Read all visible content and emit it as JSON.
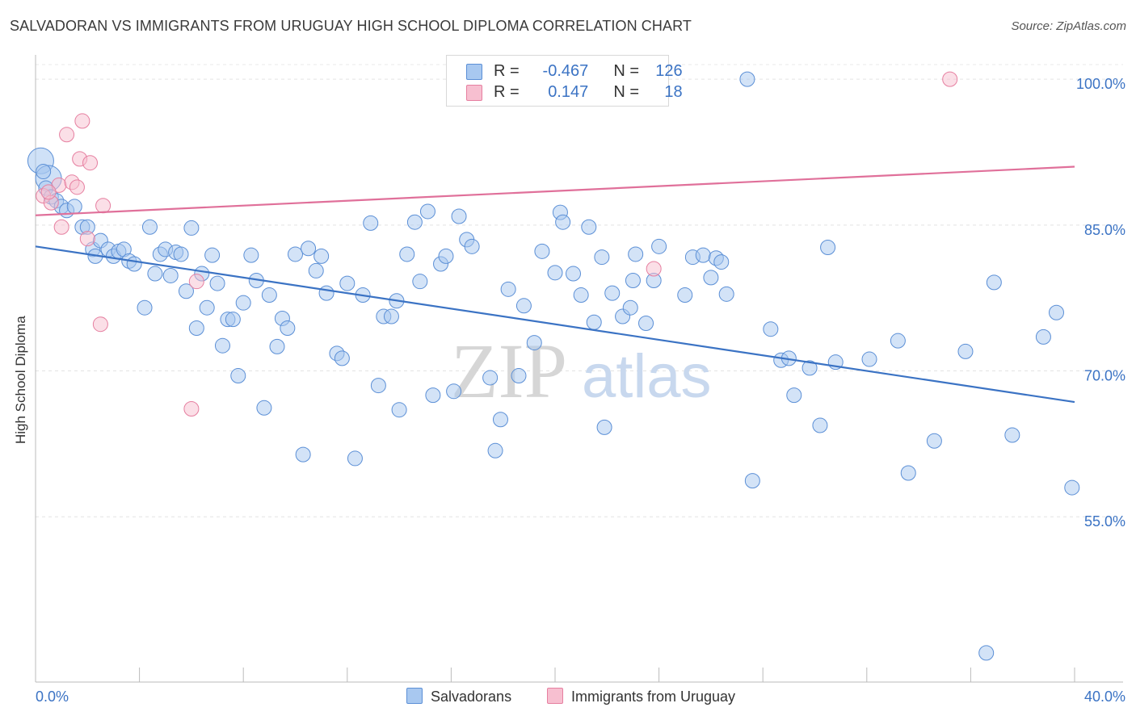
{
  "title": "SALVADORAN VS IMMIGRANTS FROM URUGUAY HIGH SCHOOL DIPLOMA CORRELATION CHART",
  "source": "Source: ZipAtlas.com",
  "watermark": {
    "zip": "ZIP",
    "atlas": "atlas"
  },
  "legend": {
    "rows": [
      {
        "r_label": "R =",
        "r_value": "-0.467",
        "n_label": "N =",
        "n_value": "126",
        "color": "#a8c8f0",
        "stroke": "#5b8fd6"
      },
      {
        "r_label": "R =",
        "r_value": "0.147",
        "n_label": "N =",
        "n_value": "18",
        "color": "#f7bfd0",
        "stroke": "#e67fa0"
      }
    ]
  },
  "bottom_legend": [
    {
      "label": "Salvadorans",
      "color": "#a8c8f0",
      "stroke": "#5b8fd6"
    },
    {
      "label": "Immigrants from Uruguay",
      "color": "#f7bfd0",
      "stroke": "#e67fa0"
    }
  ],
  "chart_data": {
    "type": "scatter",
    "title": "SALVADORAN VS IMMIGRANTS FROM URUGUAY HIGH SCHOOL DIPLOMA CORRELATION CHART",
    "xlabel": "",
    "ylabel": "High School Diploma",
    "xlim": [
      0,
      40
    ],
    "ylim": [
      38,
      102.5
    ],
    "x_tick_labels": [
      "0.0%",
      "40.0%"
    ],
    "y_ticks": [
      55,
      70,
      85,
      100
    ],
    "y_tick_labels": [
      "55.0%",
      "70.0%",
      "85.0%",
      "100.0%"
    ],
    "colors": {
      "blue": "#3b73c4",
      "pink": "#e0709a",
      "axis_text": "#3b73c4"
    },
    "series": [
      {
        "name": "Salvadorans",
        "color": "#a8c8f0",
        "stroke": "#5b8fd6",
        "trend": {
          "x": [
            0,
            40
          ],
          "y": [
            82.8,
            66.8
          ]
        },
        "points": [
          [
            0.3,
            90.5
          ],
          [
            0.4,
            88.8
          ],
          [
            0.6,
            87.9
          ],
          [
            0.8,
            87.5
          ],
          [
            1.0,
            86.9
          ],
          [
            1.2,
            86.5
          ],
          [
            1.5,
            86.9
          ],
          [
            1.8,
            84.8
          ],
          [
            2.0,
            84.8
          ],
          [
            2.2,
            82.5
          ],
          [
            2.3,
            81.8
          ],
          [
            2.5,
            83.4
          ],
          [
            2.8,
            82.5
          ],
          [
            3.0,
            81.8
          ],
          [
            3.2,
            82.3
          ],
          [
            3.4,
            82.5
          ],
          [
            3.6,
            81.3
          ],
          [
            3.8,
            81.0
          ],
          [
            4.2,
            76.5
          ],
          [
            4.4,
            84.8
          ],
          [
            4.6,
            80.0
          ],
          [
            4.8,
            82.0
          ],
          [
            5.0,
            82.5
          ],
          [
            5.2,
            79.8
          ],
          [
            5.4,
            82.2
          ],
          [
            5.6,
            82.0
          ],
          [
            5.8,
            78.2
          ],
          [
            6.0,
            84.7
          ],
          [
            6.2,
            74.4
          ],
          [
            6.4,
            80.0
          ],
          [
            6.6,
            76.5
          ],
          [
            6.8,
            81.9
          ],
          [
            7.0,
            79.0
          ],
          [
            7.2,
            72.6
          ],
          [
            7.4,
            75.3
          ],
          [
            7.6,
            75.3
          ],
          [
            7.8,
            69.5
          ],
          [
            8.0,
            77.0
          ],
          [
            8.3,
            81.9
          ],
          [
            8.5,
            79.3
          ],
          [
            8.8,
            66.2
          ],
          [
            9.0,
            77.8
          ],
          [
            9.3,
            72.5
          ],
          [
            9.5,
            75.4
          ],
          [
            9.7,
            74.4
          ],
          [
            10.0,
            82.0
          ],
          [
            10.3,
            61.4
          ],
          [
            10.5,
            82.6
          ],
          [
            10.8,
            80.3
          ],
          [
            11.0,
            81.8
          ],
          [
            11.2,
            78.0
          ],
          [
            11.6,
            71.8
          ],
          [
            11.8,
            71.3
          ],
          [
            12.0,
            79.0
          ],
          [
            12.3,
            61.0
          ],
          [
            12.6,
            77.8
          ],
          [
            12.9,
            85.2
          ],
          [
            13.2,
            68.5
          ],
          [
            13.4,
            75.6
          ],
          [
            13.7,
            75.6
          ],
          [
            13.9,
            77.2
          ],
          [
            14.0,
            66.0
          ],
          [
            14.3,
            82.0
          ],
          [
            14.6,
            85.3
          ],
          [
            14.8,
            79.2
          ],
          [
            15.1,
            86.4
          ],
          [
            15.3,
            67.5
          ],
          [
            15.6,
            81.0
          ],
          [
            15.8,
            81.8
          ],
          [
            16.1,
            67.9
          ],
          [
            16.3,
            85.9
          ],
          [
            16.6,
            83.5
          ],
          [
            16.8,
            82.8
          ],
          [
            17.5,
            69.3
          ],
          [
            17.7,
            61.8
          ],
          [
            17.9,
            65.0
          ],
          [
            18.2,
            78.4
          ],
          [
            18.6,
            69.5
          ],
          [
            18.8,
            76.7
          ],
          [
            19.2,
            72.9
          ],
          [
            19.5,
            82.3
          ],
          [
            20.0,
            80.1
          ],
          [
            20.2,
            86.3
          ],
          [
            20.3,
            85.3
          ],
          [
            20.7,
            80.0
          ],
          [
            21.0,
            77.8
          ],
          [
            21.3,
            84.8
          ],
          [
            21.5,
            75.0
          ],
          [
            21.8,
            81.7
          ],
          [
            21.9,
            64.2
          ],
          [
            22.2,
            78.0
          ],
          [
            22.6,
            75.6
          ],
          [
            22.9,
            76.5
          ],
          [
            23.0,
            79.3
          ],
          [
            23.1,
            82.0
          ],
          [
            23.5,
            74.9
          ],
          [
            23.8,
            79.3
          ],
          [
            24.0,
            82.8
          ],
          [
            25.0,
            77.8
          ],
          [
            25.3,
            81.7
          ],
          [
            25.7,
            81.9
          ],
          [
            26.0,
            79.6
          ],
          [
            26.2,
            81.6
          ],
          [
            26.4,
            81.2
          ],
          [
            26.6,
            77.9
          ],
          [
            27.4,
            100.0
          ],
          [
            27.6,
            58.7
          ],
          [
            28.3,
            74.3
          ],
          [
            28.7,
            71.1
          ],
          [
            29.0,
            71.3
          ],
          [
            29.2,
            67.5
          ],
          [
            29.8,
            70.3
          ],
          [
            30.2,
            64.4
          ],
          [
            30.5,
            82.7
          ],
          [
            30.8,
            70.9
          ],
          [
            32.1,
            71.2
          ],
          [
            33.2,
            73.1
          ],
          [
            33.6,
            59.5
          ],
          [
            34.6,
            62.8
          ],
          [
            35.8,
            72.0
          ],
          [
            36.9,
            79.1
          ],
          [
            36.6,
            41.0
          ],
          [
            37.6,
            63.4
          ],
          [
            38.8,
            73.5
          ],
          [
            39.3,
            76.0
          ],
          [
            39.9,
            58.0
          ]
        ],
        "large_points": [
          [
            0.2,
            91.6
          ],
          [
            0.5,
            89.8
          ]
        ]
      },
      {
        "name": "Immigrants from Uruguay",
        "color": "#f7bfd0",
        "stroke": "#e67fa0",
        "trend": {
          "x": [
            0,
            40
          ],
          "y": [
            86.0,
            91.0
          ]
        },
        "points": [
          [
            0.3,
            88.0
          ],
          [
            0.6,
            87.3
          ],
          [
            0.9,
            89.1
          ],
          [
            1.0,
            84.8
          ],
          [
            1.4,
            89.4
          ],
          [
            1.2,
            94.3
          ],
          [
            1.6,
            88.9
          ],
          [
            1.7,
            91.8
          ],
          [
            1.8,
            95.7
          ],
          [
            2.0,
            83.6
          ],
          [
            2.1,
            91.4
          ],
          [
            2.6,
            87.0
          ],
          [
            2.5,
            74.8
          ],
          [
            6.0,
            66.1
          ],
          [
            6.2,
            79.2
          ],
          [
            23.8,
            80.5
          ],
          [
            35.2,
            100.0
          ],
          [
            0.5,
            88.4
          ]
        ]
      }
    ]
  }
}
